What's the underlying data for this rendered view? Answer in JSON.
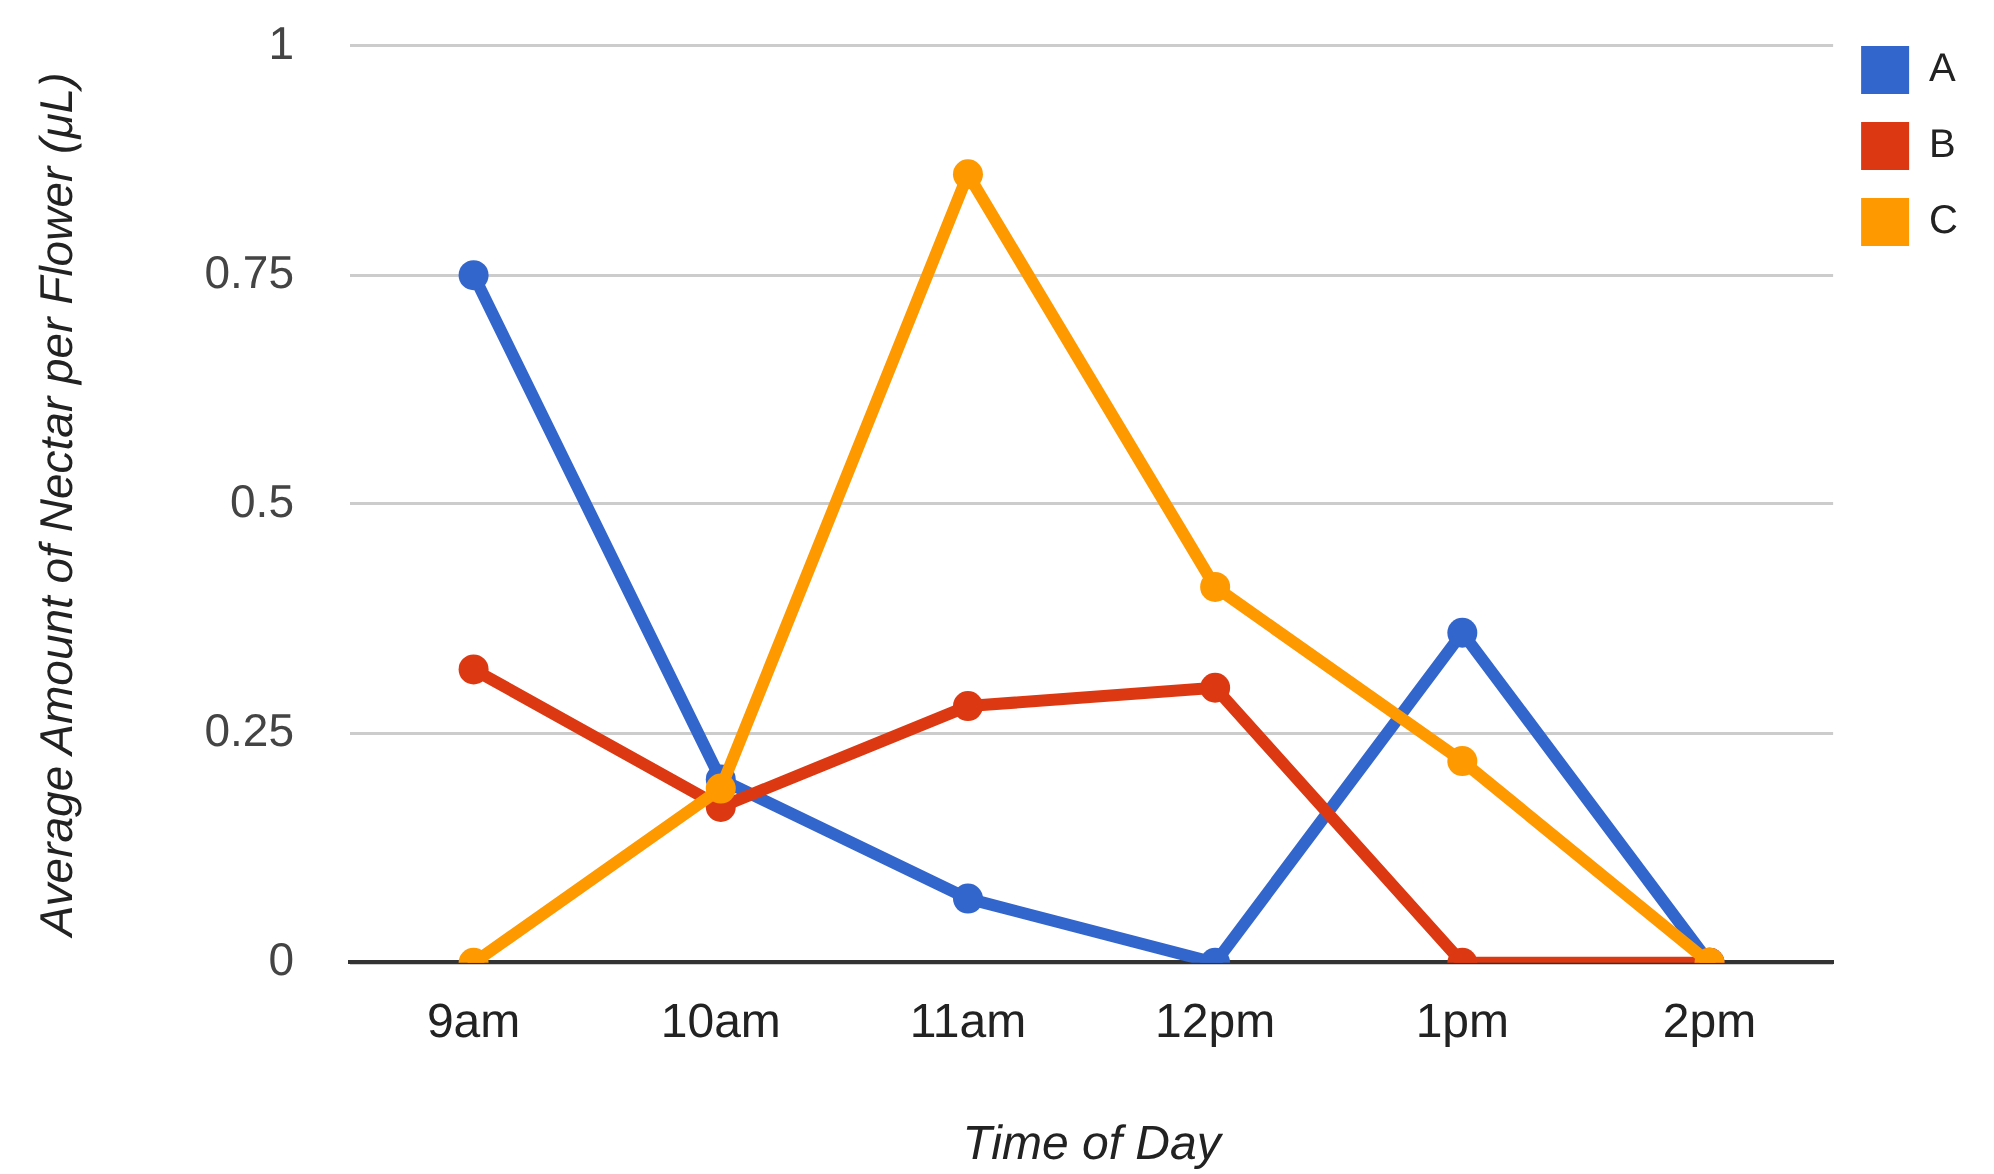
{
  "chart_data": {
    "type": "line",
    "categories": [
      "9am",
      "10am",
      "11am",
      "12pm",
      "1pm",
      "2pm"
    ],
    "xlabel": "Time of Day",
    "ylabel": "Average Amount of Nectar per Flower (μL)",
    "ylim": [
      0,
      1
    ],
    "yticks": [
      0,
      0.25,
      0.5,
      0.75,
      1
    ],
    "grid": "y",
    "legend": "top right",
    "marker": "circle",
    "series": [
      {
        "name": "A",
        "color": "#3366cc",
        "values": [
          0.75,
          0.2,
          0.07,
          0,
          0.36,
          0
        ]
      },
      {
        "name": "B",
        "color": "#dc3912",
        "values": [
          0.32,
          0.17,
          0.28,
          0.3,
          0,
          0
        ]
      },
      {
        "name": "C",
        "color": "#ff9900",
        "values": [
          0,
          0.19,
          0.86,
          0.41,
          0.22,
          0
        ]
      }
    ]
  }
}
